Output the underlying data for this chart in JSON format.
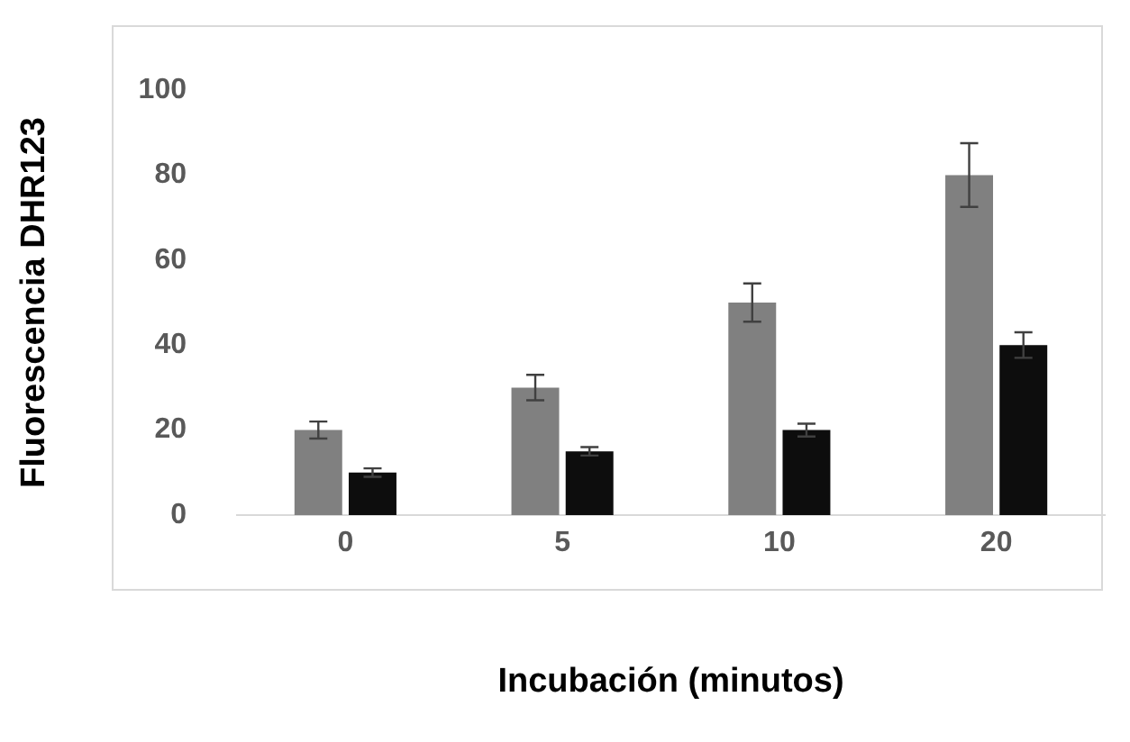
{
  "chart_data": {
    "type": "bar",
    "xlabel": "Incubación (minutos)",
    "ylabel": "Fluorescencia DHR123",
    "categories": [
      "0",
      "5",
      "10",
      "20"
    ],
    "series": [
      {
        "color": "#808080",
        "values": [
          20,
          30,
          50,
          80
        ],
        "errors": [
          2,
          3,
          4.5,
          7.5
        ]
      },
      {
        "color": "#0d0d0d",
        "values": [
          10,
          15,
          20,
          40
        ],
        "errors": [
          1,
          1,
          1.5,
          3
        ]
      }
    ],
    "ylim": [
      0,
      100
    ],
    "yticks": [
      0,
      20,
      40,
      60,
      80,
      100
    ],
    "grid": false,
    "legend": false
  }
}
